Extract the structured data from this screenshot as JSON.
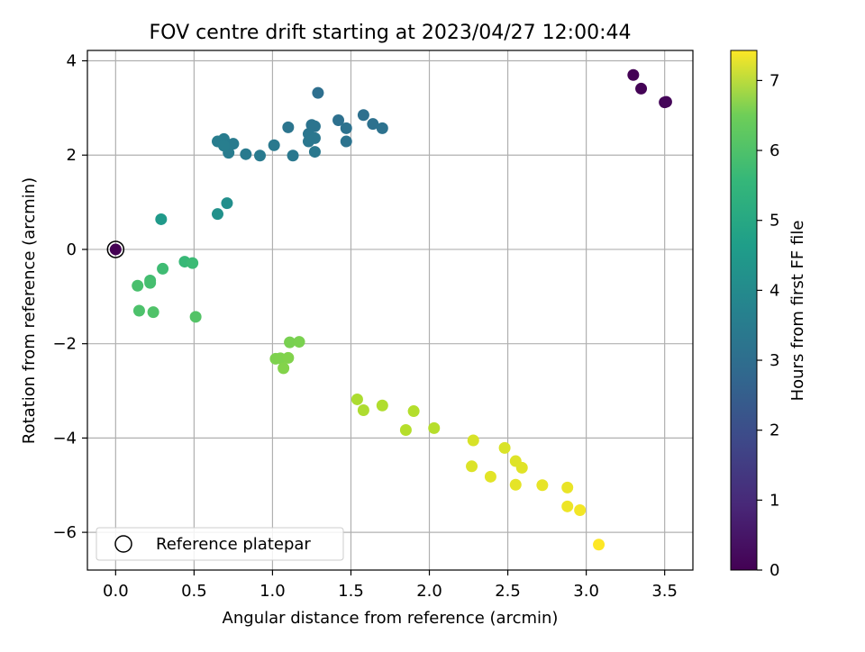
{
  "chart_data": {
    "type": "scatter",
    "title": "FOV centre drift starting at 2023/04/27 12:00:44",
    "xlabel": "Angular distance from reference (arcmin)",
    "ylabel": "Rotation from reference (arcmin)",
    "xlim": [
      -0.18,
      3.68
    ],
    "ylim": [
      -6.8,
      4.22
    ],
    "xticks": [
      0.0,
      0.5,
      1.0,
      1.5,
      2.0,
      2.5,
      3.0,
      3.5
    ],
    "xtick_labels": [
      "0.0",
      "0.5",
      "1.0",
      "1.5",
      "2.0",
      "2.5",
      "3.0",
      "3.5"
    ],
    "yticks": [
      4,
      2,
      0,
      -2,
      -4,
      -6
    ],
    "ytick_labels": [
      "4",
      "2",
      "0",
      "−2",
      "−4",
      "−6"
    ],
    "grid": true,
    "legend": {
      "placement": "lower-left",
      "entries": [
        "Reference platepar"
      ]
    },
    "colorbar": {
      "label": "Hours from first FF file",
      "range": [
        0,
        7.43
      ],
      "ticks": [
        0,
        1,
        2,
        3,
        4,
        5,
        6,
        7
      ],
      "tick_labels": [
        "0",
        "1",
        "2",
        "3",
        "4",
        "5",
        "6",
        "7"
      ],
      "colormap": "viridis"
    },
    "reference_point": {
      "x": 0.0,
      "y": 0.0,
      "hours": 0.0
    },
    "points": [
      {
        "x": 3.3,
        "y": 3.7,
        "hours": 0.02
      },
      {
        "x": 3.35,
        "y": 3.41,
        "hours": 0.05
      },
      {
        "x": 3.5,
        "y": 3.12,
        "hours": 0.1
      },
      {
        "x": 3.51,
        "y": 3.13,
        "hours": 0.12
      },
      {
        "x": 1.29,
        "y": 3.32,
        "hours": 2.7
      },
      {
        "x": 1.58,
        "y": 2.85,
        "hours": 2.72
      },
      {
        "x": 1.42,
        "y": 2.74,
        "hours": 2.74
      },
      {
        "x": 1.64,
        "y": 2.66,
        "hours": 2.76
      },
      {
        "x": 1.7,
        "y": 2.57,
        "hours": 2.78
      },
      {
        "x": 1.47,
        "y": 2.57,
        "hours": 2.8
      },
      {
        "x": 1.47,
        "y": 2.29,
        "hours": 2.82
      },
      {
        "x": 1.25,
        "y": 2.64,
        "hours": 2.84
      },
      {
        "x": 1.27,
        "y": 2.61,
        "hours": 2.86
      },
      {
        "x": 1.1,
        "y": 2.59,
        "hours": 2.88
      },
      {
        "x": 1.23,
        "y": 2.45,
        "hours": 2.9
      },
      {
        "x": 1.24,
        "y": 2.39,
        "hours": 2.92
      },
      {
        "x": 1.27,
        "y": 2.36,
        "hours": 2.94
      },
      {
        "x": 1.23,
        "y": 2.29,
        "hours": 2.96
      },
      {
        "x": 1.27,
        "y": 2.07,
        "hours": 2.98
      },
      {
        "x": 1.13,
        "y": 1.99,
        "hours": 3.0
      },
      {
        "x": 1.01,
        "y": 2.21,
        "hours": 3.02
      },
      {
        "x": 0.92,
        "y": 1.99,
        "hours": 3.04
      },
      {
        "x": 0.83,
        "y": 2.02,
        "hours": 3.06
      },
      {
        "x": 0.75,
        "y": 2.24,
        "hours": 3.08
      },
      {
        "x": 0.72,
        "y": 2.05,
        "hours": 3.1
      },
      {
        "x": 0.69,
        "y": 2.34,
        "hours": 3.12
      },
      {
        "x": 0.65,
        "y": 2.29,
        "hours": 3.14
      },
      {
        "x": 0.69,
        "y": 2.2,
        "hours": 3.16
      },
      {
        "x": 0.71,
        "y": 0.98,
        "hours": 3.7
      },
      {
        "x": 0.65,
        "y": 0.75,
        "hours": 3.75
      },
      {
        "x": 0.29,
        "y": 0.64,
        "hours": 4.0
      },
      {
        "x": 0.44,
        "y": -0.26,
        "hours": 5.0
      },
      {
        "x": 0.49,
        "y": -0.29,
        "hours": 5.05
      },
      {
        "x": 0.3,
        "y": -0.41,
        "hours": 5.1
      },
      {
        "x": 0.22,
        "y": -0.66,
        "hours": 5.15
      },
      {
        "x": 0.22,
        "y": -0.71,
        "hours": 5.2
      },
      {
        "x": 0.14,
        "y": -0.77,
        "hours": 5.25
      },
      {
        "x": 0.15,
        "y": -1.3,
        "hours": 5.3
      },
      {
        "x": 0.24,
        "y": -1.33,
        "hours": 5.35
      },
      {
        "x": 0.51,
        "y": -1.43,
        "hours": 5.4
      },
      {
        "x": 1.11,
        "y": -1.97,
        "hours": 5.9
      },
      {
        "x": 1.17,
        "y": -1.96,
        "hours": 5.92
      },
      {
        "x": 1.02,
        "y": -2.32,
        "hours": 5.95
      },
      {
        "x": 1.05,
        "y": -2.31,
        "hours": 5.97
      },
      {
        "x": 1.1,
        "y": -2.3,
        "hours": 6.0
      },
      {
        "x": 1.07,
        "y": -2.52,
        "hours": 6.02
      },
      {
        "x": 1.54,
        "y": -3.18,
        "hours": 6.5
      },
      {
        "x": 1.58,
        "y": -3.41,
        "hours": 6.52
      },
      {
        "x": 1.7,
        "y": -3.31,
        "hours": 6.55
      },
      {
        "x": 1.9,
        "y": -3.43,
        "hours": 6.58
      },
      {
        "x": 1.85,
        "y": -3.83,
        "hours": 6.6
      },
      {
        "x": 2.03,
        "y": -3.79,
        "hours": 6.62
      },
      {
        "x": 2.28,
        "y": -4.05,
        "hours": 7.0
      },
      {
        "x": 2.48,
        "y": -4.21,
        "hours": 7.02
      },
      {
        "x": 2.27,
        "y": -4.6,
        "hours": 7.05
      },
      {
        "x": 2.55,
        "y": -4.49,
        "hours": 7.07
      },
      {
        "x": 2.59,
        "y": -4.63,
        "hours": 7.1
      },
      {
        "x": 2.39,
        "y": -4.82,
        "hours": 7.12
      },
      {
        "x": 2.55,
        "y": -4.99,
        "hours": 7.15
      },
      {
        "x": 2.72,
        "y": -5.0,
        "hours": 7.18
      },
      {
        "x": 2.88,
        "y": -5.05,
        "hours": 7.2
      },
      {
        "x": 2.88,
        "y": -5.45,
        "hours": 7.25
      },
      {
        "x": 2.96,
        "y": -5.53,
        "hours": 7.3
      },
      {
        "x": 3.08,
        "y": -6.26,
        "hours": 7.43
      }
    ]
  }
}
